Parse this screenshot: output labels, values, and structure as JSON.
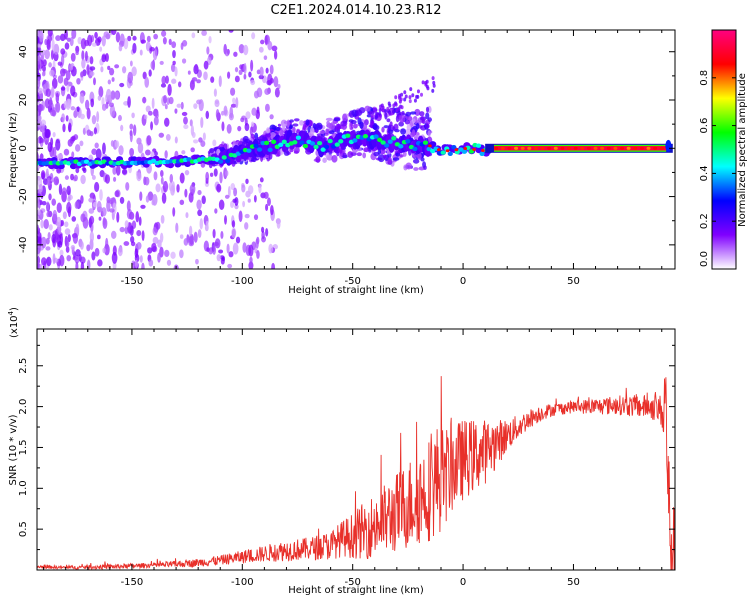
{
  "figure_title": "C2E1.2024.014.10.23.R12",
  "chart_data": [
    {
      "type": "heatmap",
      "title": "C2E1.2024.014.10.23.R12",
      "xlabel": "Height of straight line (km)",
      "ylabel": "Frequency (Hz)",
      "xlim": [
        -193,
        96
      ],
      "ylim": [
        -50,
        49
      ],
      "xticks": [
        -150,
        -100,
        -50,
        0,
        50
      ],
      "xtick_labels": [
        "-150",
        "-100",
        "-50",
        "0",
        "50"
      ],
      "yticks": [
        -40,
        -20,
        0,
        20,
        40
      ],
      "ytick_labels": [
        "-40",
        "-20",
        "0",
        "20",
        "40"
      ],
      "ridge": {
        "name": "dominant frequency",
        "x": [
          -190,
          -170,
          -150,
          -130,
          -110,
          -95,
          -85,
          -75,
          -65,
          -55,
          -45,
          -35,
          -25,
          -15,
          -10,
          -5,
          0,
          5,
          10,
          20,
          40,
          60,
          80,
          92
        ],
        "y": [
          -6,
          -6,
          -6,
          -5.5,
          -4,
          -1,
          2,
          4,
          1,
          3,
          5,
          3,
          1,
          1,
          -1,
          -1,
          0,
          -0.5,
          -1,
          0,
          0,
          0,
          0,
          1
        ]
      },
      "colorbar": {
        "label": "Normalized spectral amplitude",
        "range": [
          0,
          1
        ],
        "ticks": [
          0.0,
          0.2,
          0.4,
          0.6,
          0.8
        ],
        "tick_labels": [
          "0.0",
          "0.2",
          "0.4",
          "0.6",
          "0.8"
        ],
        "colormap": [
          "#ffffff",
          "#8000ff",
          "#0000ff",
          "#00ffff",
          "#00ff00",
          "#ffff00",
          "#ff0000",
          "#ff0080"
        ]
      }
    },
    {
      "type": "line",
      "xlabel": "Height of straight line (km)",
      "ylabel": "SNR (10 * v/v)",
      "y_multiplier": "(x10",
      "y_multiplier_exp": "4",
      "y_multiplier_close": ")",
      "xlim": [
        -193,
        96
      ],
      "ylim": [
        0,
        2.95
      ],
      "xticks": [
        -150,
        -100,
        -50,
        0,
        50
      ],
      "xtick_labels": [
        "-150",
        "-100",
        "-50",
        "0",
        "50"
      ],
      "yticks": [
        0.5,
        1.0,
        1.5,
        2.0,
        2.5
      ],
      "ytick_labels": [
        "0.5",
        "1.0",
        "1.5",
        "2.0",
        "2.5"
      ],
      "series": [
        {
          "name": "SNR",
          "color": "#e8302a",
          "x": [
            -193,
            -180,
            -160,
            -140,
            -130,
            -120,
            -110,
            -100,
            -90,
            -85,
            -80,
            -70,
            -60,
            -55,
            -50,
            -45,
            -40,
            -35,
            -30,
            -25,
            -20,
            -15,
            -12,
            -8,
            -5,
            0,
            5,
            10,
            15,
            20,
            25,
            30,
            35,
            40,
            45,
            50,
            60,
            70,
            80,
            85,
            90,
            91,
            92,
            93,
            95
          ],
          "y": [
            0.04,
            0.03,
            0.04,
            0.06,
            0.07,
            0.09,
            0.12,
            0.16,
            0.2,
            0.22,
            0.24,
            0.26,
            0.3,
            0.38,
            0.42,
            0.48,
            0.55,
            0.62,
            0.7,
            0.8,
            0.9,
            1.0,
            1.1,
            1.15,
            1.25,
            1.35,
            1.4,
            1.45,
            1.55,
            1.65,
            1.75,
            1.85,
            1.92,
            1.96,
            1.98,
            2.0,
            2.0,
            2.02,
            2.0,
            2.0,
            1.95,
            1.9,
            2.1,
            0.8,
            0.2
          ],
          "noise_amp": [
            0.02,
            0.02,
            0.03,
            0.03,
            0.04,
            0.05,
            0.06,
            0.08,
            0.1,
            0.12,
            0.13,
            0.14,
            0.18,
            0.22,
            0.28,
            0.35,
            0.4,
            0.45,
            0.5,
            0.55,
            0.6,
            0.65,
            0.7,
            0.6,
            0.55,
            0.5,
            0.45,
            0.4,
            0.3,
            0.2,
            0.15,
            0.12,
            0.1,
            0.08,
            0.08,
            0.08,
            0.1,
            0.12,
            0.14,
            0.15,
            0.2,
            0.6,
            0.8,
            0.8,
            0.6
          ]
        }
      ]
    }
  ]
}
